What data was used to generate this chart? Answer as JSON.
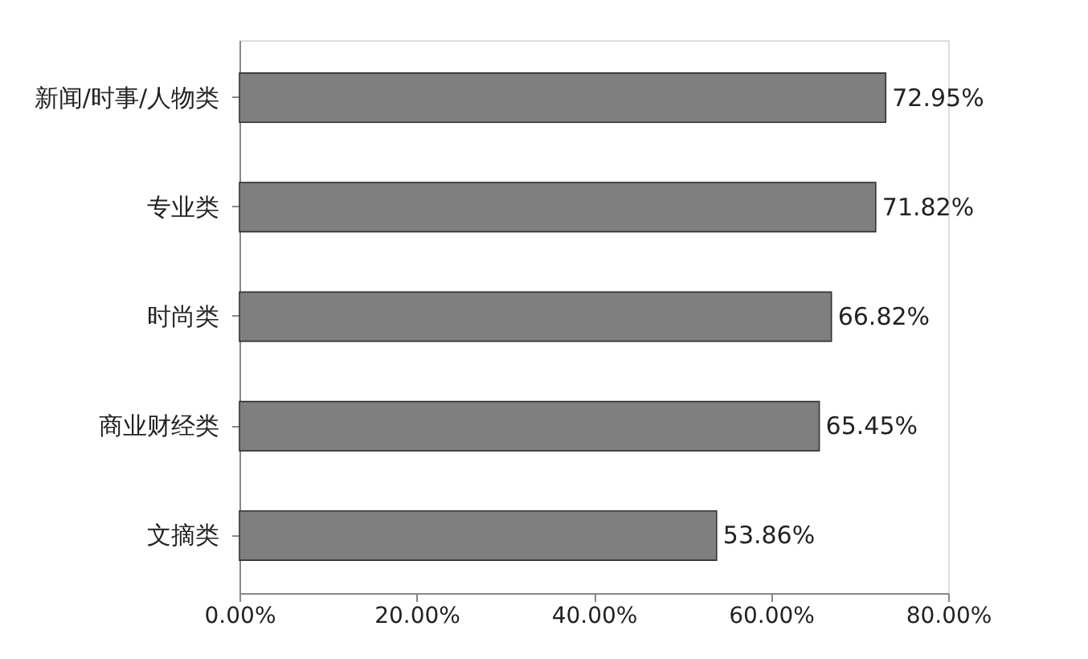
{
  "chart_data": {
    "type": "bar",
    "orientation": "horizontal",
    "categories": [
      "新闻/时事/人物类",
      "专业类",
      "时尚类",
      "商业财经类",
      "文摘类"
    ],
    "values": [
      72.95,
      71.82,
      66.82,
      65.45,
      53.86
    ],
    "value_labels": [
      "72.95%",
      "71.82%",
      "66.82%",
      "65.45%",
      "53.86%"
    ],
    "color": "#7f7f7f",
    "xlim": [
      0,
      80
    ],
    "xticks": [
      {
        "value": 0,
        "label": "0.00%"
      },
      {
        "value": 20,
        "label": "20.00%"
      },
      {
        "value": 40,
        "label": "40.00%"
      },
      {
        "value": 60,
        "label": "60.00%"
      },
      {
        "value": 80,
        "label": "80.00%"
      }
    ],
    "grid": false
  }
}
